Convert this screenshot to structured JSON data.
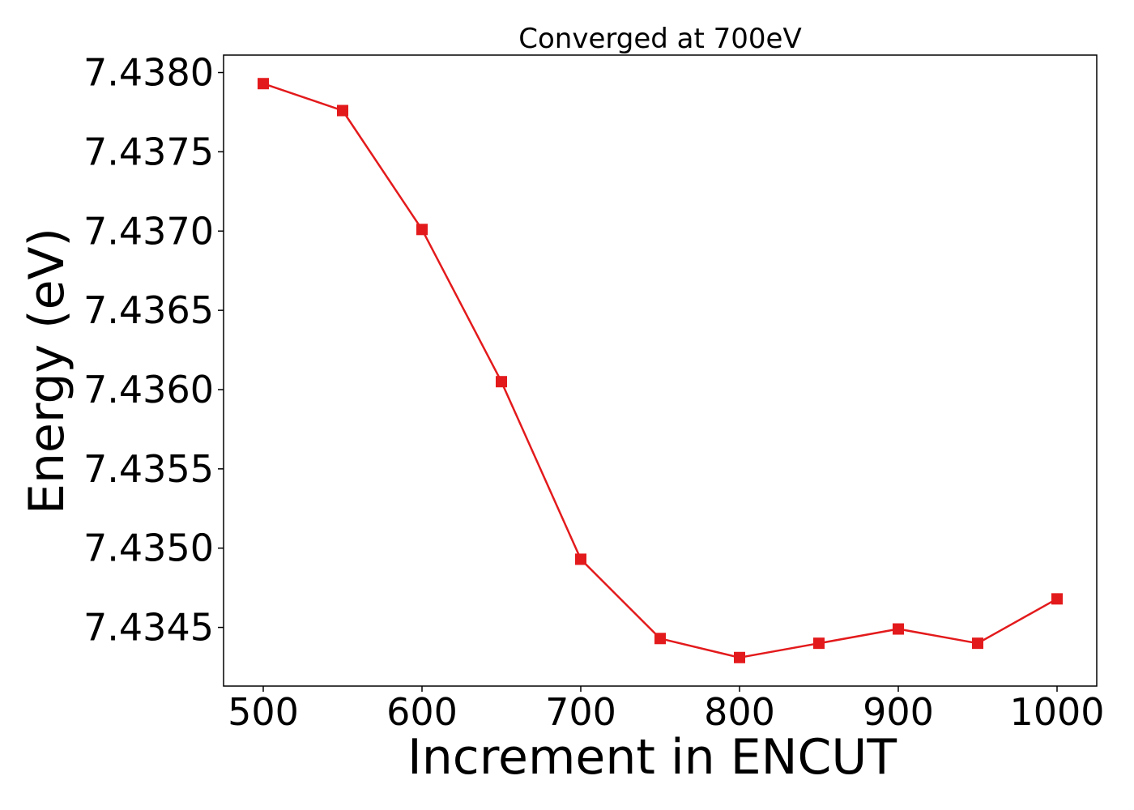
{
  "chart_data": {
    "type": "line",
    "title": "Converged at 700eV",
    "xlabel": "Increment in ENCUT",
    "ylabel": "Energy (eV)",
    "x": [
      500,
      550,
      600,
      650,
      700,
      750,
      800,
      850,
      900,
      950,
      1000
    ],
    "series": [
      {
        "values": [
          7.43793,
          7.43776,
          7.43701,
          7.43605,
          7.43493,
          7.43443,
          7.43431,
          7.4344,
          7.43449,
          7.4344,
          7.43468
        ],
        "color": "#e31a1c",
        "marker": "square"
      }
    ],
    "xlim": [
      475,
      1025
    ],
    "ylim": [
      7.43413,
      7.43811
    ],
    "xticks": [
      500,
      600,
      700,
      800,
      900,
      1000
    ],
    "xtick_labels": [
      "500",
      "600",
      "700",
      "800",
      "900",
      "1000"
    ],
    "yticks": [
      7.4345,
      7.435,
      7.4355,
      7.436,
      7.4365,
      7.437,
      7.4375,
      7.438
    ],
    "ytick_labels": [
      "7.4345",
      "7.4350",
      "7.4355",
      "7.4360",
      "7.4365",
      "7.4370",
      "7.4375",
      "7.4380"
    ],
    "grid": false,
    "legend": false
  }
}
